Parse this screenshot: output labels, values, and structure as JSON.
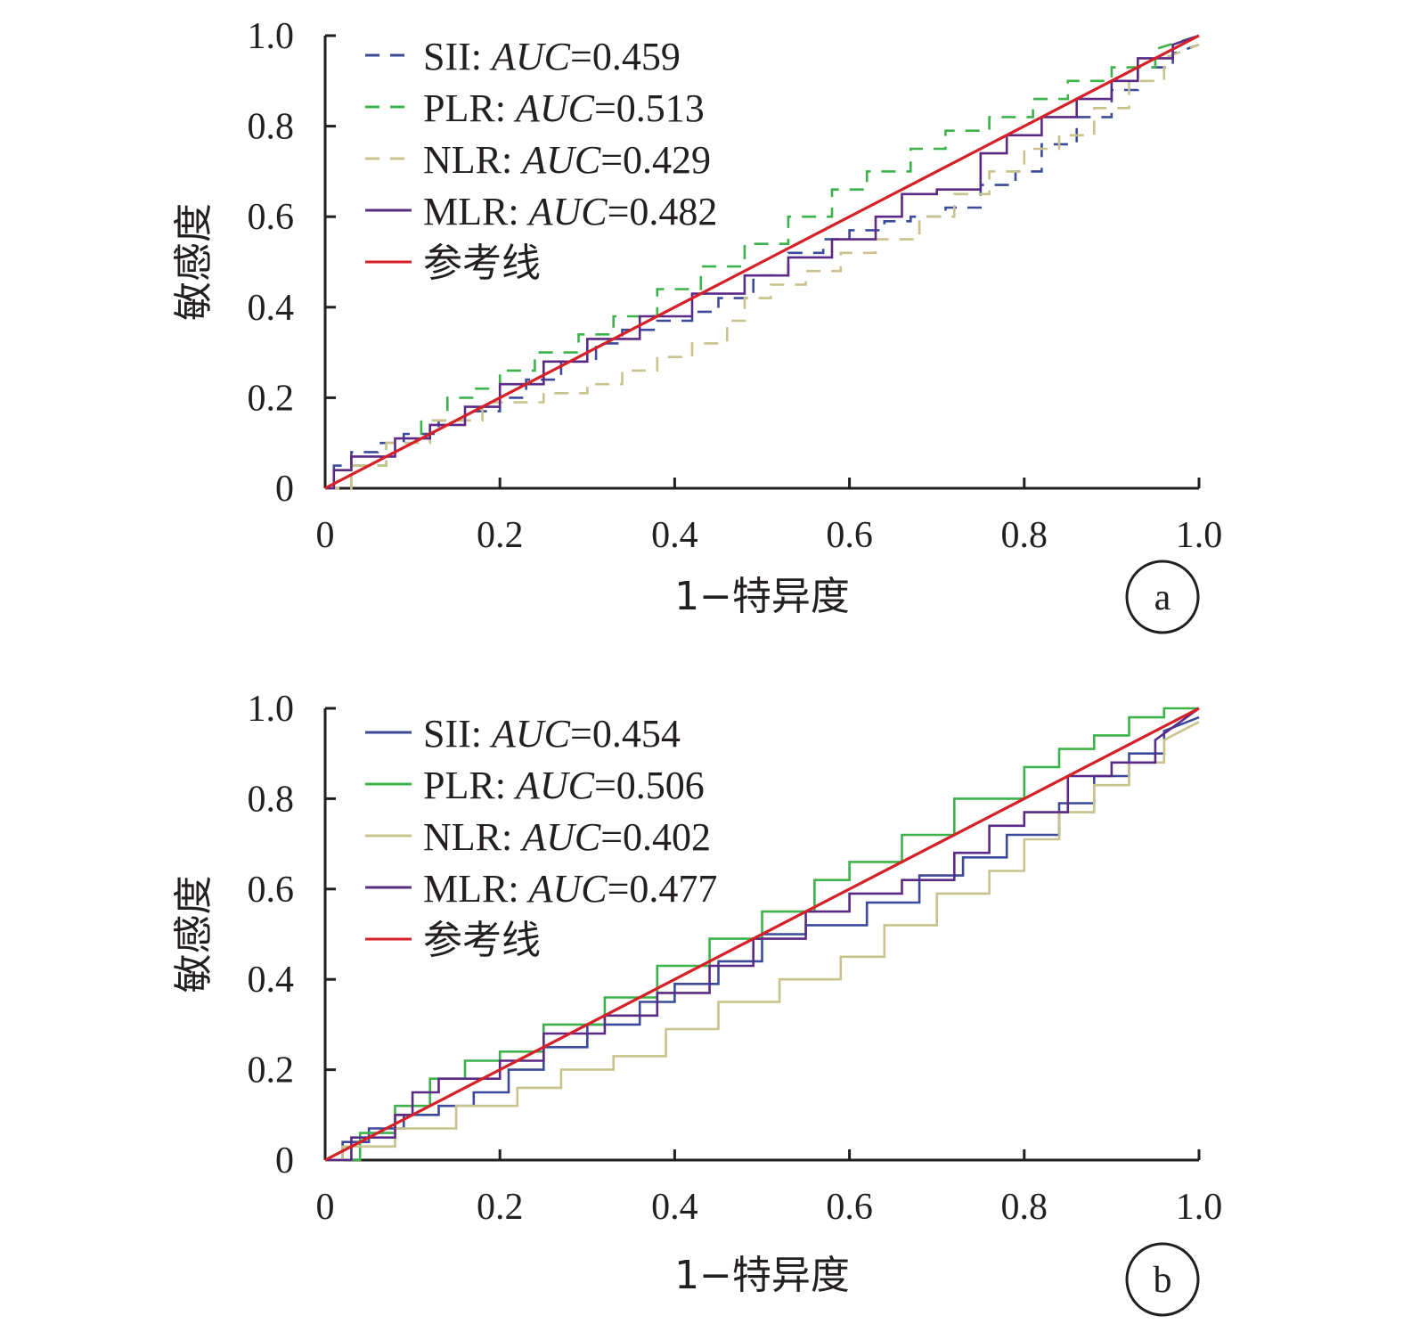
{
  "chart_data": [
    {
      "type": "line",
      "panel_label": "a",
      "xlabel": "1−特异度",
      "ylabel": "敏感度",
      "xlim": [
        0,
        1
      ],
      "ylim": [
        0,
        1
      ],
      "x_ticks": [
        "0",
        "0.2",
        "0.4",
        "0.6",
        "0.8",
        "1.0"
      ],
      "y_ticks": [
        "0",
        "0.2",
        "0.4",
        "0.6",
        "0.8",
        "1.0"
      ],
      "grid": false,
      "legend_position": "top-left",
      "series": [
        {
          "name": "SII",
          "auc_label": "AUC",
          "auc_value": "=0.459",
          "color": "#3b4a9a",
          "dash": "dashed",
          "x": [
            0,
            0.01,
            0.01,
            0.03,
            0.03,
            0.06,
            0.06,
            0.09,
            0.09,
            0.13,
            0.13,
            0.16,
            0.16,
            0.2,
            0.2,
            0.23,
            0.23,
            0.27,
            0.27,
            0.31,
            0.31,
            0.34,
            0.34,
            0.38,
            0.38,
            0.42,
            0.42,
            0.45,
            0.45,
            0.49,
            0.49,
            0.53,
            0.53,
            0.57,
            0.57,
            0.6,
            0.6,
            0.64,
            0.64,
            0.67,
            0.67,
            0.71,
            0.71,
            0.75,
            0.75,
            0.79,
            0.79,
            0.82,
            0.82,
            0.86,
            0.86,
            0.9,
            0.9,
            0.93,
            0.93,
            0.97,
            0.97,
            1.0
          ],
          "y": [
            0,
            0,
            0.05,
            0.05,
            0.08,
            0.08,
            0.1,
            0.1,
            0.12,
            0.12,
            0.15,
            0.15,
            0.17,
            0.17,
            0.2,
            0.2,
            0.24,
            0.24,
            0.28,
            0.28,
            0.32,
            0.32,
            0.35,
            0.35,
            0.37,
            0.37,
            0.39,
            0.39,
            0.42,
            0.42,
            0.47,
            0.47,
            0.52,
            0.52,
            0.55,
            0.55,
            0.57,
            0.57,
            0.59,
            0.59,
            0.6,
            0.6,
            0.62,
            0.62,
            0.67,
            0.67,
            0.7,
            0.7,
            0.76,
            0.76,
            0.82,
            0.82,
            0.88,
            0.88,
            0.93,
            0.93,
            0.96,
            0.98
          ]
        },
        {
          "name": "PLR",
          "auc_label": "AUC",
          "auc_value": "=0.513",
          "color": "#3cb34a",
          "dash": "dashed",
          "x": [
            0,
            0.03,
            0.03,
            0.07,
            0.07,
            0.11,
            0.11,
            0.14,
            0.14,
            0.17,
            0.17,
            0.2,
            0.2,
            0.24,
            0.24,
            0.29,
            0.29,
            0.33,
            0.33,
            0.38,
            0.38,
            0.43,
            0.43,
            0.48,
            0.48,
            0.53,
            0.53,
            0.58,
            0.58,
            0.62,
            0.62,
            0.67,
            0.67,
            0.71,
            0.71,
            0.76,
            0.76,
            0.81,
            0.81,
            0.85,
            0.85,
            0.9,
            0.9,
            0.95,
            0.95,
            1.0
          ],
          "y": [
            0,
            0,
            0.05,
            0.05,
            0.1,
            0.1,
            0.15,
            0.15,
            0.2,
            0.2,
            0.22,
            0.22,
            0.26,
            0.26,
            0.3,
            0.3,
            0.34,
            0.34,
            0.38,
            0.38,
            0.44,
            0.44,
            0.49,
            0.49,
            0.54,
            0.54,
            0.6,
            0.6,
            0.66,
            0.66,
            0.7,
            0.7,
            0.75,
            0.75,
            0.79,
            0.79,
            0.82,
            0.82,
            0.86,
            0.86,
            0.9,
            0.9,
            0.93,
            0.93,
            0.97,
            1.0
          ]
        },
        {
          "name": "NLR",
          "auc_label": "AUC",
          "auc_value": "=0.429",
          "color": "#c8c38c",
          "dash": "dashed",
          "x": [
            0,
            0.03,
            0.03,
            0.07,
            0.07,
            0.12,
            0.12,
            0.18,
            0.18,
            0.25,
            0.25,
            0.3,
            0.3,
            0.34,
            0.34,
            0.38,
            0.38,
            0.42,
            0.42,
            0.46,
            0.46,
            0.48,
            0.48,
            0.51,
            0.51,
            0.55,
            0.55,
            0.59,
            0.59,
            0.63,
            0.63,
            0.68,
            0.68,
            0.72,
            0.72,
            0.76,
            0.76,
            0.8,
            0.8,
            0.84,
            0.84,
            0.88,
            0.88,
            0.92,
            0.92,
            0.96,
            0.96,
            1.0
          ],
          "y": [
            0,
            0,
            0.05,
            0.05,
            0.1,
            0.1,
            0.15,
            0.15,
            0.19,
            0.19,
            0.21,
            0.21,
            0.23,
            0.23,
            0.26,
            0.26,
            0.29,
            0.29,
            0.32,
            0.32,
            0.37,
            0.37,
            0.42,
            0.42,
            0.45,
            0.45,
            0.48,
            0.48,
            0.52,
            0.52,
            0.55,
            0.55,
            0.6,
            0.6,
            0.65,
            0.65,
            0.7,
            0.7,
            0.75,
            0.75,
            0.78,
            0.78,
            0.84,
            0.84,
            0.9,
            0.9,
            0.95,
            0.98
          ]
        },
        {
          "name": "MLR",
          "auc_label": "AUC",
          "auc_value": "=0.482",
          "color": "#5b2a86",
          "dash": "solid",
          "x": [
            0,
            0.01,
            0.01,
            0.03,
            0.03,
            0.08,
            0.08,
            0.12,
            0.12,
            0.16,
            0.16,
            0.2,
            0.2,
            0.25,
            0.25,
            0.3,
            0.3,
            0.36,
            0.36,
            0.42,
            0.42,
            0.48,
            0.48,
            0.53,
            0.53,
            0.58,
            0.58,
            0.63,
            0.63,
            0.66,
            0.66,
            0.7,
            0.7,
            0.75,
            0.75,
            0.78,
            0.78,
            0.82,
            0.82,
            0.86,
            0.86,
            0.9,
            0.9,
            0.93,
            0.93,
            0.97,
            0.97,
            1.0
          ],
          "y": [
            0,
            0,
            0.04,
            0.04,
            0.07,
            0.07,
            0.11,
            0.11,
            0.14,
            0.14,
            0.18,
            0.18,
            0.23,
            0.23,
            0.28,
            0.28,
            0.33,
            0.33,
            0.38,
            0.38,
            0.43,
            0.43,
            0.47,
            0.47,
            0.51,
            0.51,
            0.55,
            0.55,
            0.6,
            0.6,
            0.65,
            0.65,
            0.66,
            0.66,
            0.74,
            0.74,
            0.78,
            0.78,
            0.82,
            0.82,
            0.86,
            0.86,
            0.9,
            0.9,
            0.95,
            0.95,
            0.98,
            1.0
          ]
        },
        {
          "name": "参考线",
          "color": "#d62027",
          "dash": "solid",
          "x": [
            0,
            1
          ],
          "y": [
            0,
            1
          ]
        }
      ]
    },
    {
      "type": "line",
      "panel_label": "b",
      "xlabel": "1−特异度",
      "ylabel": "敏感度",
      "xlim": [
        0,
        1
      ],
      "ylim": [
        0,
        1
      ],
      "x_ticks": [
        "0",
        "0.2",
        "0.4",
        "0.6",
        "0.8",
        "1.0"
      ],
      "y_ticks": [
        "0",
        "0.2",
        "0.4",
        "0.6",
        "0.8",
        "1.0"
      ],
      "grid": false,
      "legend_position": "top-left",
      "series": [
        {
          "name": "SII",
          "auc_label": "AUC",
          "auc_value": "=0.454",
          "color": "#3b4a9a",
          "dash": "solid",
          "x": [
            0,
            0.02,
            0.02,
            0.05,
            0.05,
            0.09,
            0.09,
            0.13,
            0.13,
            0.17,
            0.17,
            0.21,
            0.21,
            0.25,
            0.25,
            0.3,
            0.3,
            0.36,
            0.36,
            0.4,
            0.4,
            0.45,
            0.45,
            0.5,
            0.5,
            0.55,
            0.55,
            0.62,
            0.62,
            0.68,
            0.68,
            0.73,
            0.73,
            0.78,
            0.78,
            0.84,
            0.84,
            0.88,
            0.88,
            0.92,
            0.92,
            0.96,
            0.96,
            1.0
          ],
          "y": [
            0,
            0,
            0.04,
            0.04,
            0.07,
            0.07,
            0.1,
            0.1,
            0.12,
            0.12,
            0.15,
            0.15,
            0.2,
            0.2,
            0.25,
            0.25,
            0.3,
            0.3,
            0.35,
            0.35,
            0.39,
            0.39,
            0.44,
            0.44,
            0.5,
            0.5,
            0.52,
            0.52,
            0.57,
            0.57,
            0.63,
            0.63,
            0.67,
            0.67,
            0.72,
            0.72,
            0.79,
            0.79,
            0.85,
            0.85,
            0.9,
            0.9,
            0.95,
            0.98
          ]
        },
        {
          "name": "PLR",
          "auc_label": "AUC",
          "auc_value": "=0.506",
          "color": "#3cb34a",
          "dash": "solid",
          "x": [
            0,
            0.04,
            0.04,
            0.08,
            0.08,
            0.12,
            0.12,
            0.16,
            0.16,
            0.2,
            0.2,
            0.25,
            0.25,
            0.32,
            0.32,
            0.38,
            0.38,
            0.44,
            0.44,
            0.5,
            0.5,
            0.56,
            0.56,
            0.6,
            0.6,
            0.66,
            0.66,
            0.72,
            0.72,
            0.8,
            0.8,
            0.84,
            0.84,
            0.88,
            0.88,
            0.92,
            0.92,
            0.96,
            0.96,
            1.0
          ],
          "y": [
            0,
            0,
            0.06,
            0.06,
            0.12,
            0.12,
            0.18,
            0.18,
            0.22,
            0.22,
            0.24,
            0.24,
            0.3,
            0.3,
            0.36,
            0.36,
            0.43,
            0.43,
            0.49,
            0.49,
            0.55,
            0.55,
            0.62,
            0.62,
            0.66,
            0.66,
            0.72,
            0.72,
            0.8,
            0.8,
            0.87,
            0.87,
            0.91,
            0.91,
            0.94,
            0.94,
            0.98,
            0.98,
            1.0,
            1.0
          ]
        },
        {
          "name": "NLR",
          "auc_label": "AUC",
          "auc_value": "=0.402",
          "color": "#c8c38c",
          "dash": "solid",
          "x": [
            0,
            0.02,
            0.02,
            0.08,
            0.08,
            0.15,
            0.15,
            0.22,
            0.22,
            0.27,
            0.27,
            0.33,
            0.33,
            0.39,
            0.39,
            0.45,
            0.45,
            0.52,
            0.52,
            0.59,
            0.59,
            0.64,
            0.64,
            0.7,
            0.7,
            0.76,
            0.76,
            0.8,
            0.8,
            0.84,
            0.84,
            0.88,
            0.88,
            0.92,
            0.92,
            0.96,
            0.96,
            1.0
          ],
          "y": [
            0,
            0,
            0.03,
            0.03,
            0.07,
            0.07,
            0.12,
            0.12,
            0.16,
            0.16,
            0.2,
            0.2,
            0.23,
            0.23,
            0.29,
            0.29,
            0.35,
            0.35,
            0.4,
            0.4,
            0.45,
            0.45,
            0.52,
            0.52,
            0.59,
            0.59,
            0.64,
            0.64,
            0.71,
            0.71,
            0.77,
            0.77,
            0.83,
            0.83,
            0.88,
            0.88,
            0.93,
            0.97
          ]
        },
        {
          "name": "MLR",
          "auc_label": "AUC",
          "auc_value": "=0.477",
          "color": "#5b2a86",
          "dash": "solid",
          "x": [
            0,
            0.03,
            0.03,
            0.08,
            0.08,
            0.1,
            0.1,
            0.13,
            0.13,
            0.2,
            0.2,
            0.25,
            0.25,
            0.32,
            0.32,
            0.38,
            0.38,
            0.44,
            0.44,
            0.49,
            0.49,
            0.55,
            0.55,
            0.6,
            0.6,
            0.66,
            0.66,
            0.72,
            0.72,
            0.76,
            0.76,
            0.8,
            0.8,
            0.85,
            0.85,
            0.9,
            0.9,
            0.95,
            0.95,
            1.0
          ],
          "y": [
            0,
            0,
            0.05,
            0.05,
            0.1,
            0.1,
            0.15,
            0.15,
            0.18,
            0.18,
            0.22,
            0.22,
            0.28,
            0.28,
            0.32,
            0.32,
            0.37,
            0.37,
            0.43,
            0.43,
            0.49,
            0.49,
            0.55,
            0.55,
            0.59,
            0.59,
            0.62,
            0.62,
            0.68,
            0.68,
            0.74,
            0.74,
            0.77,
            0.77,
            0.85,
            0.85,
            0.88,
            0.88,
            0.93,
            1.0
          ]
        },
        {
          "name": "参考线",
          "color": "#d62027",
          "dash": "solid",
          "x": [
            0,
            1
          ],
          "y": [
            0,
            1
          ]
        }
      ]
    }
  ]
}
